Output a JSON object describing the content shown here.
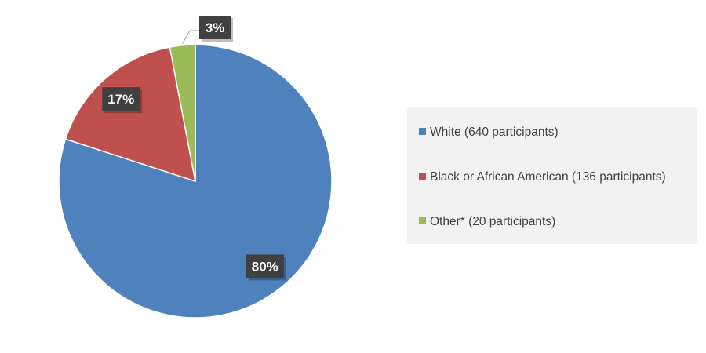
{
  "chart_data": {
    "type": "pie",
    "title": "",
    "slices": [
      {
        "label": "White (640 participants)",
        "value": 80,
        "display": "80%",
        "color": "#4F81BD"
      },
      {
        "label": "Black or African American (136 participants)",
        "value": 17,
        "display": "17%",
        "color": "#C0504D"
      },
      {
        "label": "Other* (20 participants)",
        "value": 3,
        "display": "3%",
        "color": "#9BBB59"
      }
    ],
    "start_angle": "12 o'clock",
    "direction": "clockwise",
    "legend_position": "right",
    "data_label_style": "white bold text on dark box"
  }
}
